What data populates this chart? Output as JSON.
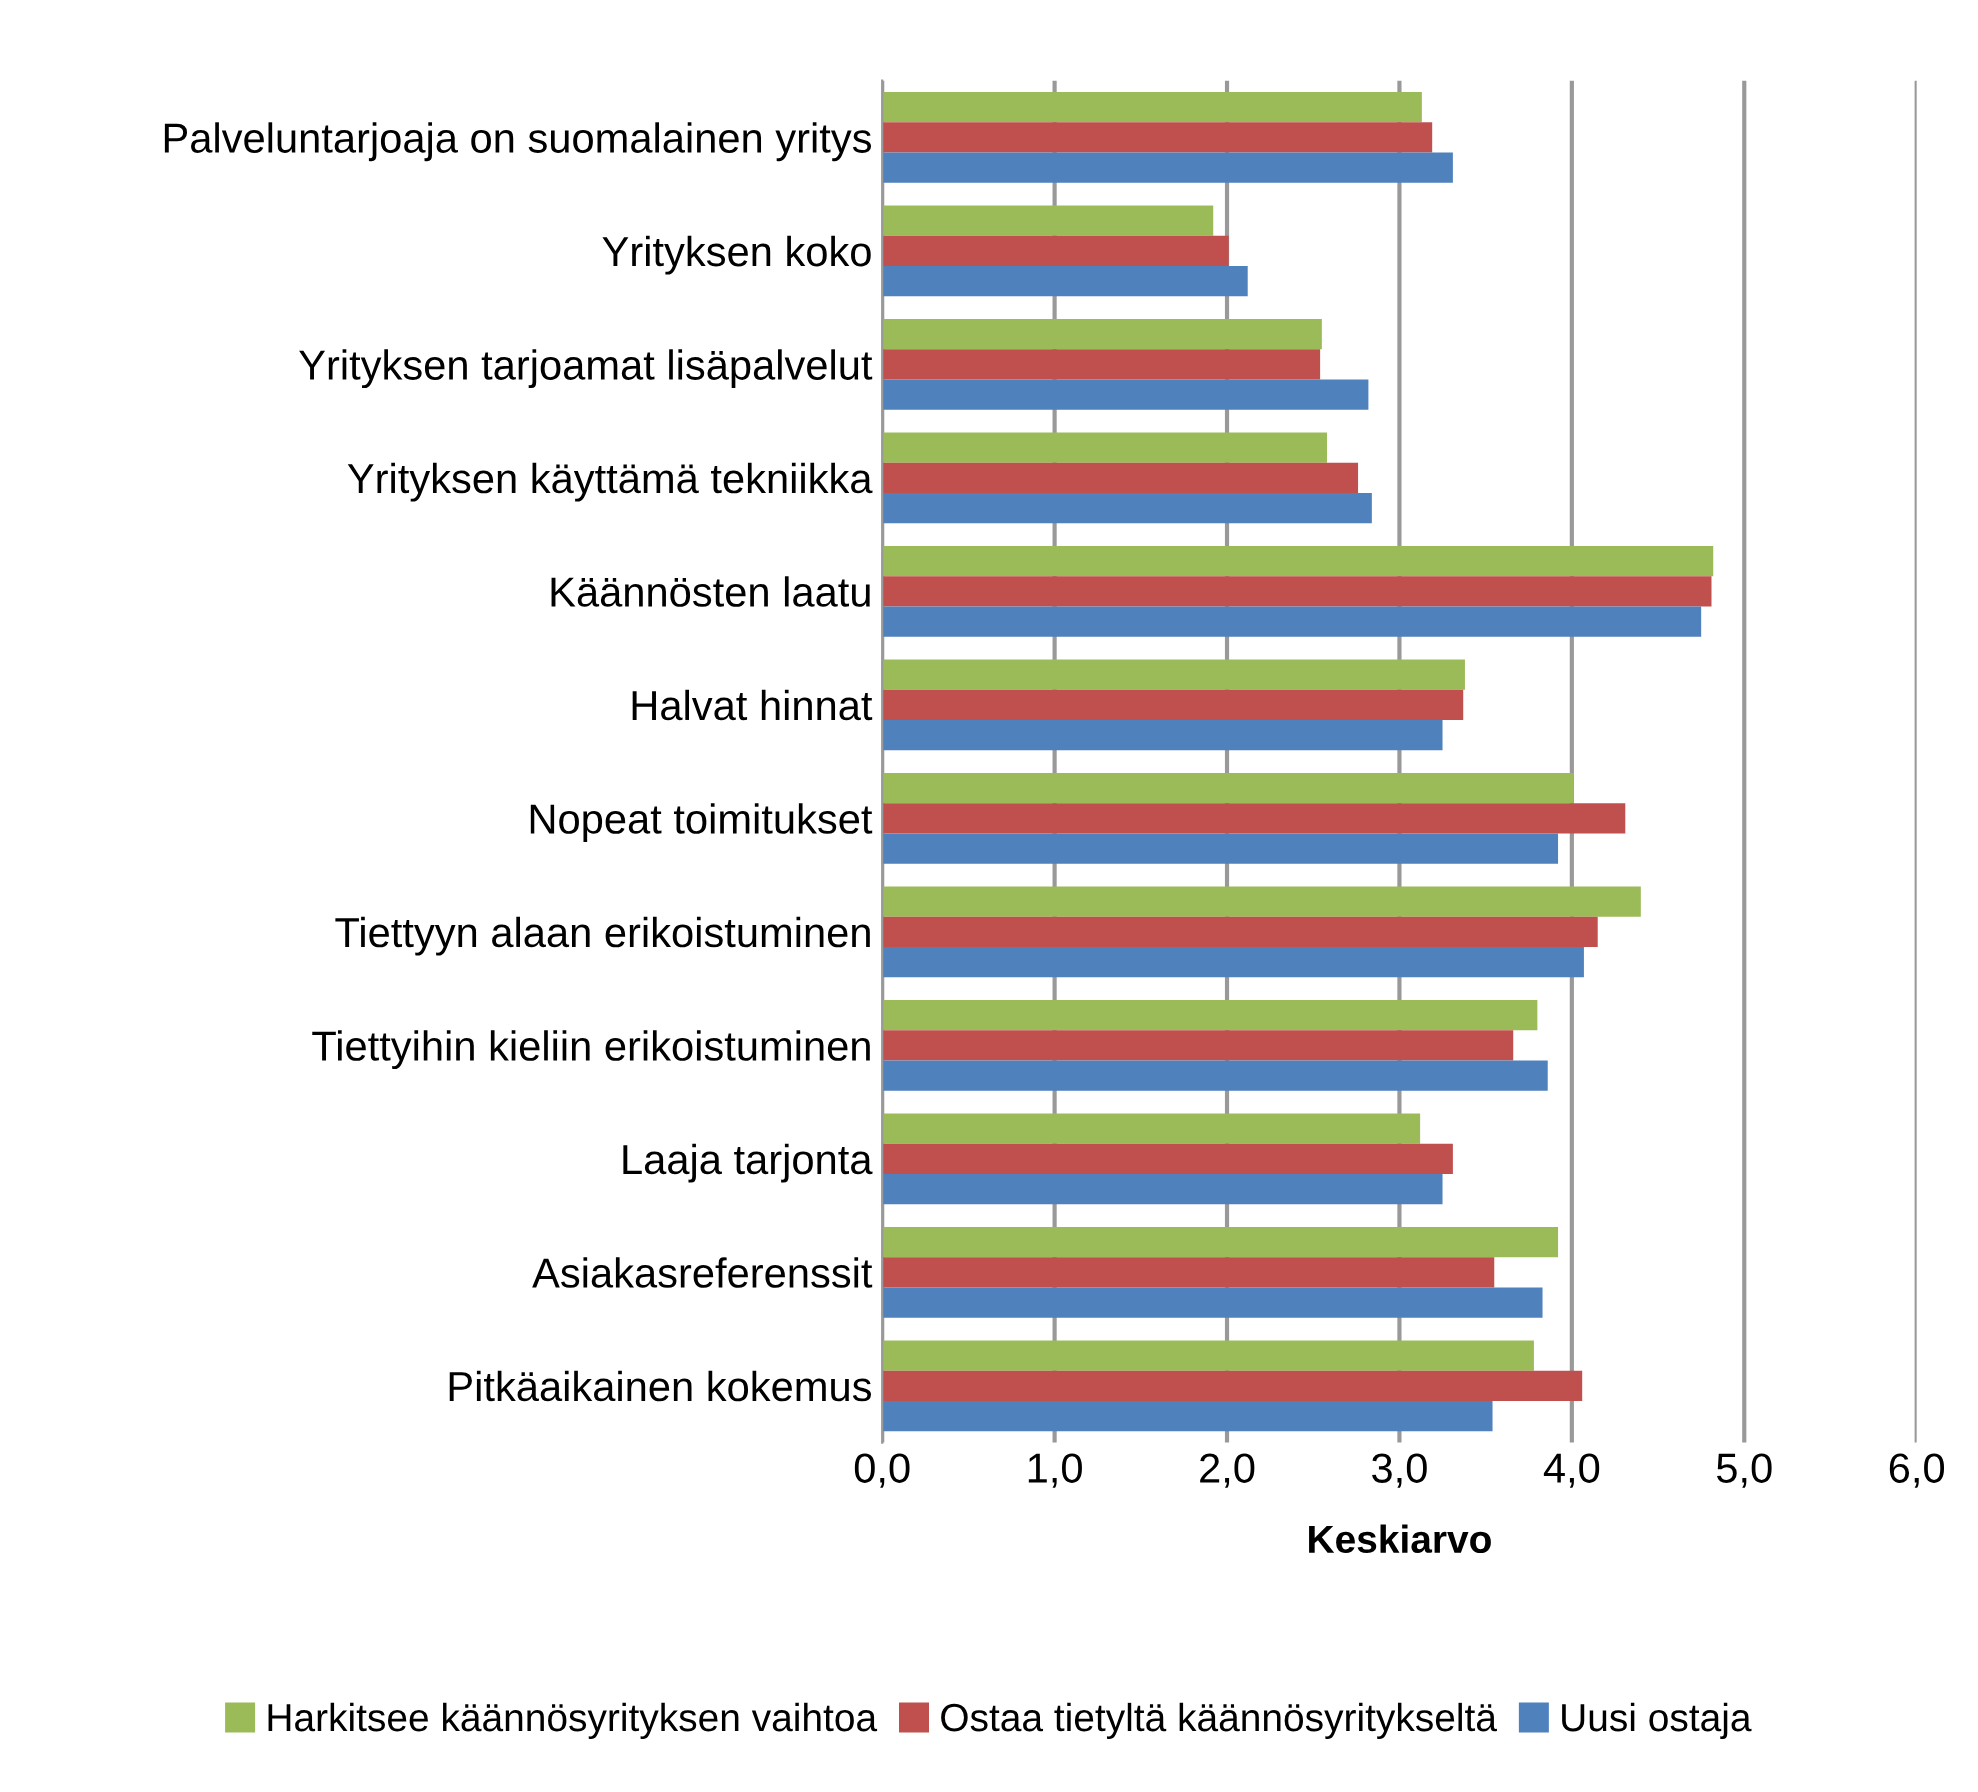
{
  "chart_data": {
    "type": "bar",
    "orientation": "horizontal",
    "xlabel": "Keskiarvo",
    "categories": [
      "Palveluntarjoaja on suomalainen yritys",
      "Yrityksen koko",
      "Yrityksen tarjoamat lisäpalvelut",
      "Yrityksen käyttämä tekniikka",
      "Käännösten laatu",
      "Halvat hinnat",
      "Nopeat toimitukset",
      "Tiettyyn alaan erikoistuminen",
      "Tiettyihin kieliin erikoistuminen",
      "Laaja tarjonta",
      "Asiakasreferenssit",
      "Pitkäaikainen kokemus"
    ],
    "series": [
      {
        "name": "Harkitsee käännösyrityksen vaihtoa",
        "color": "#9bbb59",
        "values": [
          3.13,
          1.92,
          2.55,
          2.58,
          4.82,
          3.38,
          4.01,
          4.4,
          3.8,
          3.12,
          3.92,
          3.78
        ]
      },
      {
        "name": "Ostaa tietyltä käännösyritykseltä",
        "color": "#c0504d",
        "values": [
          3.19,
          2.01,
          2.54,
          2.76,
          4.81,
          3.37,
          4.31,
          4.15,
          3.66,
          3.31,
          3.55,
          4.06
        ]
      },
      {
        "name": "Uusi ostaja",
        "color": "#4f81bd",
        "values": [
          3.31,
          2.12,
          2.82,
          2.84,
          4.75,
          3.25,
          3.92,
          4.07,
          3.86,
          3.25,
          3.83,
          3.54
        ]
      }
    ],
    "xlim": [
      0,
      6
    ],
    "xticks": [
      {
        "value": 0,
        "label": "0,0"
      },
      {
        "value": 1,
        "label": "1,0"
      },
      {
        "value": 2,
        "label": "2,0"
      },
      {
        "value": 3,
        "label": "3,0"
      },
      {
        "value": 4,
        "label": "4,0"
      },
      {
        "value": 5,
        "label": "5,0"
      },
      {
        "value": 6,
        "label": "6,0"
      }
    ],
    "grid": "x",
    "legend": "bottom"
  }
}
